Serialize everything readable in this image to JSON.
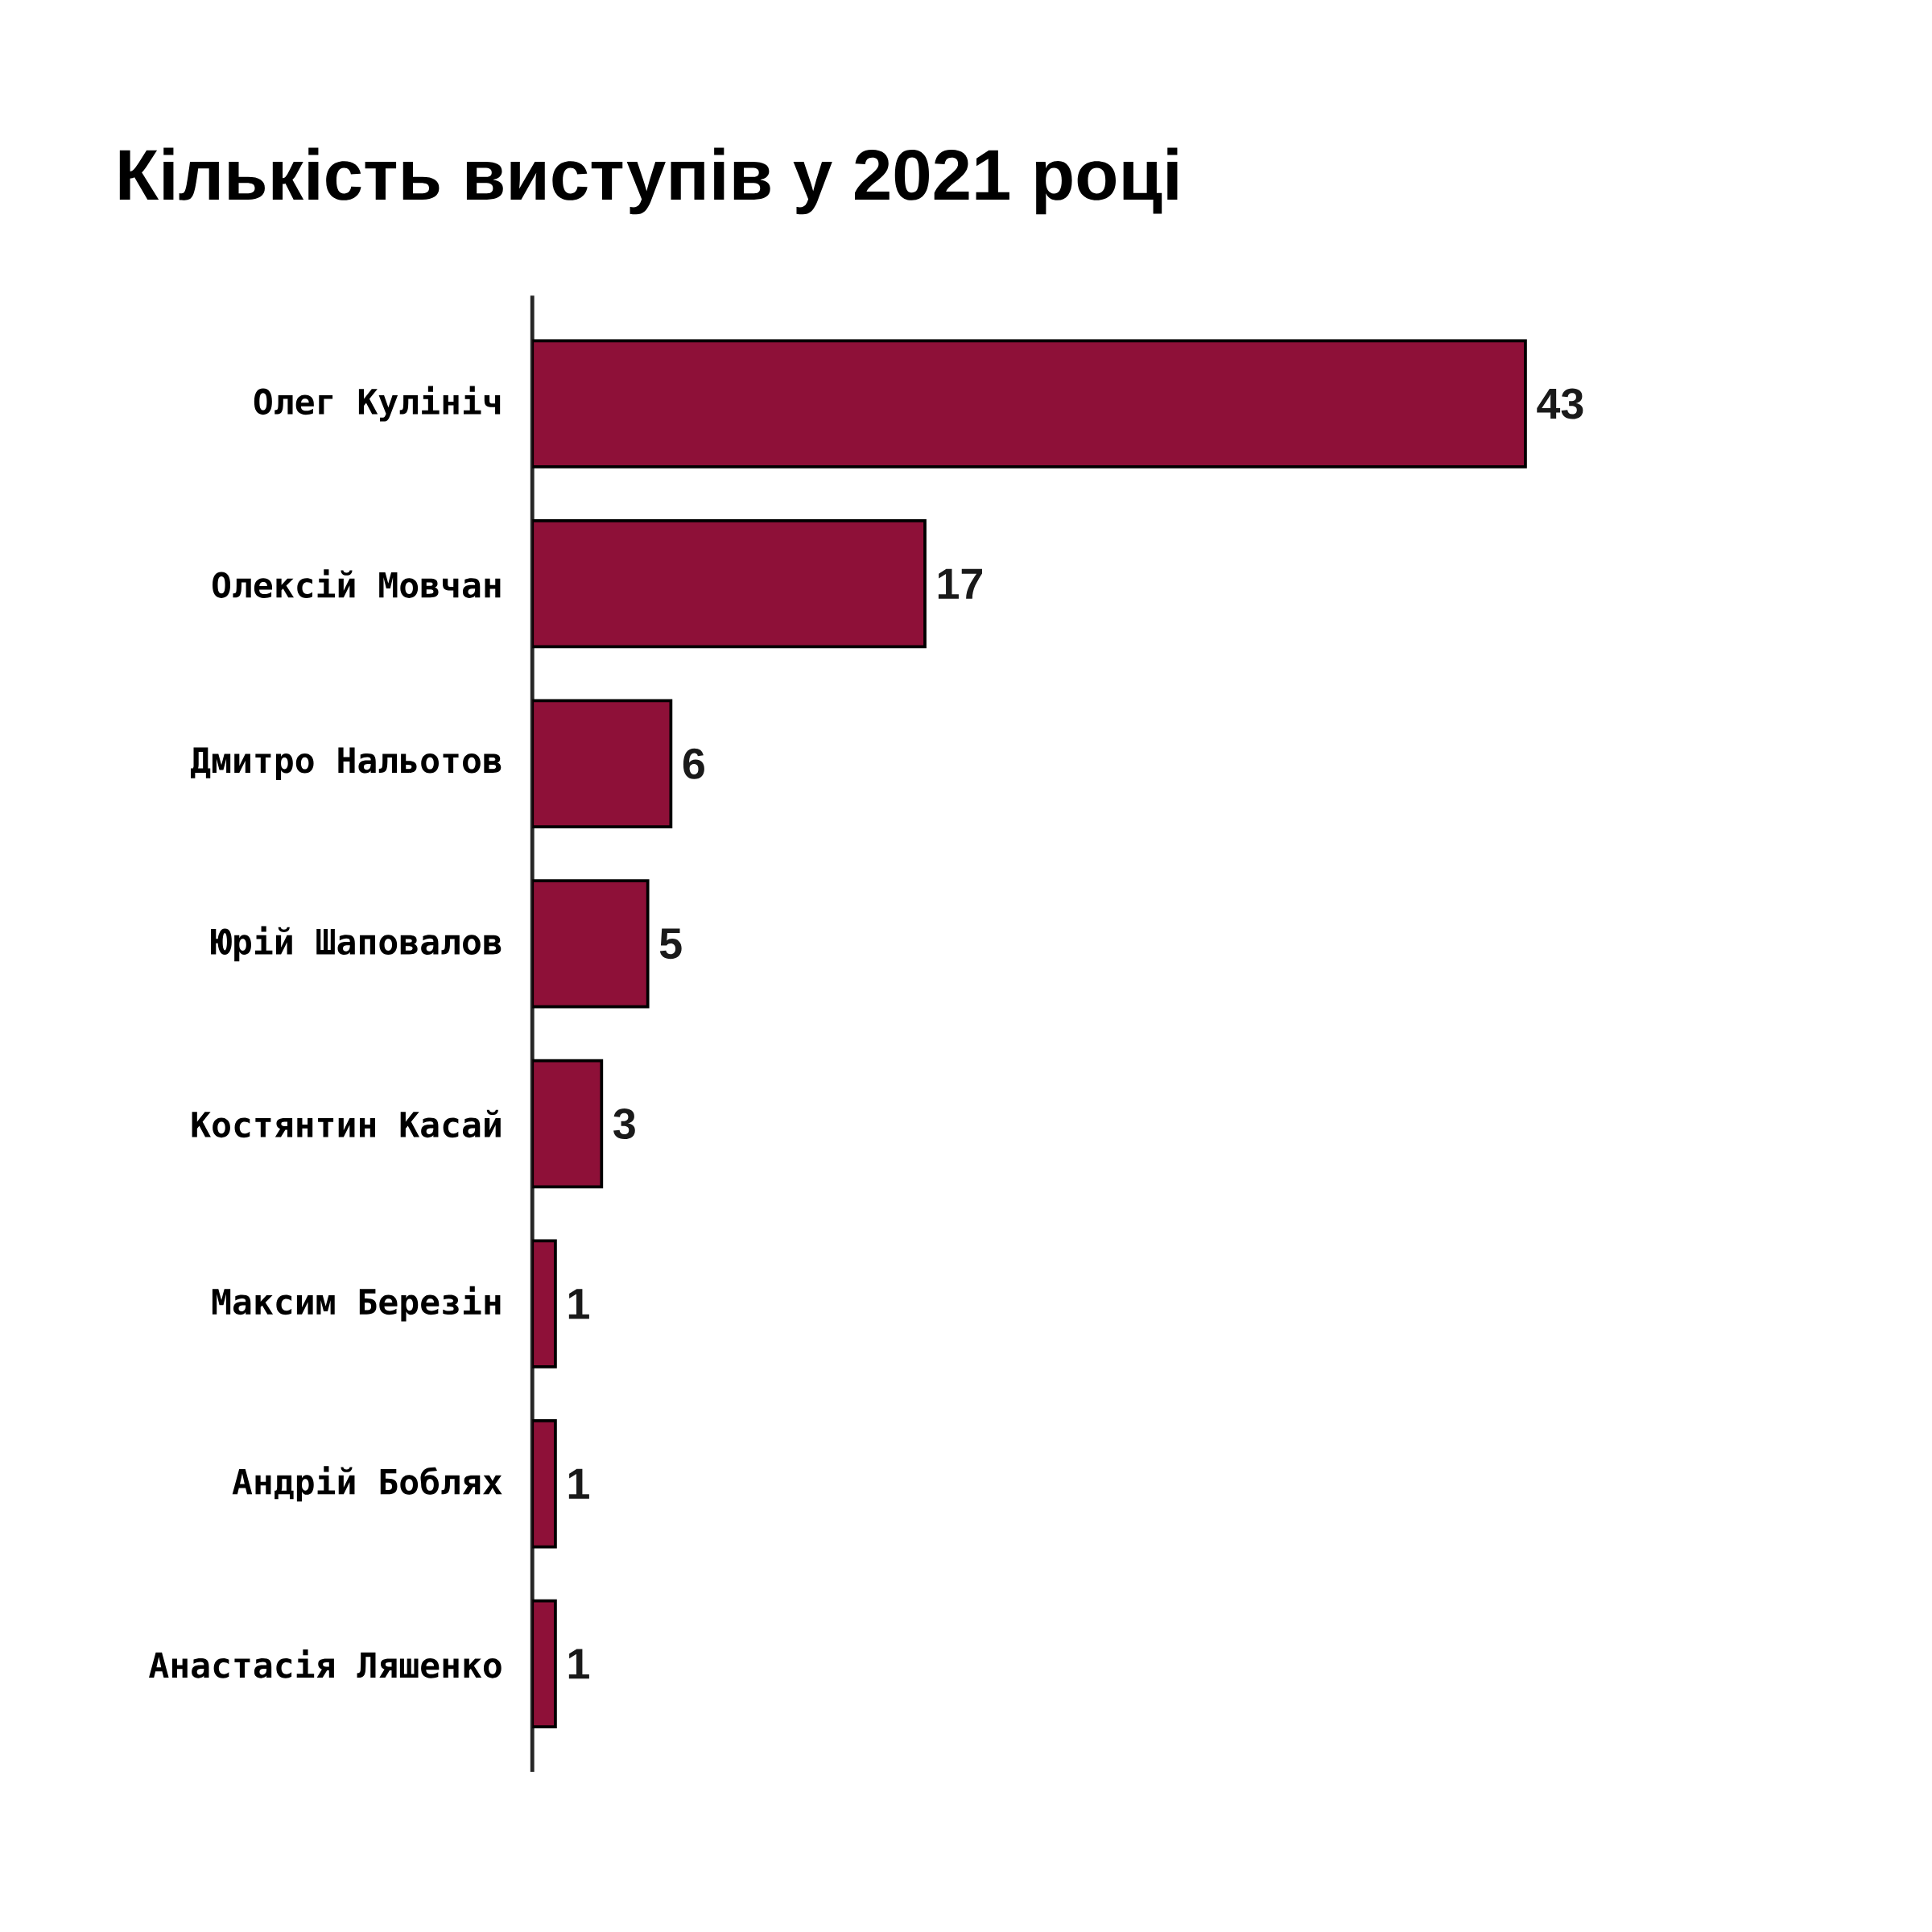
{
  "chart_data": {
    "type": "bar",
    "orientation": "horizontal",
    "title": "Кількість виступів у 2021 році",
    "categories": [
      "Олег Кулініч",
      "Олексій Мовчан",
      "Дмитро Нальотов",
      "Юрій Шаповалов",
      "Костянтин Касай",
      "Максим Березін",
      "Андрій Боблях",
      "Анастасія Ляшенко"
    ],
    "values": [
      43,
      17,
      6,
      5,
      3,
      1,
      1,
      1
    ],
    "color": "#8e1038",
    "data_labels": true
  }
}
